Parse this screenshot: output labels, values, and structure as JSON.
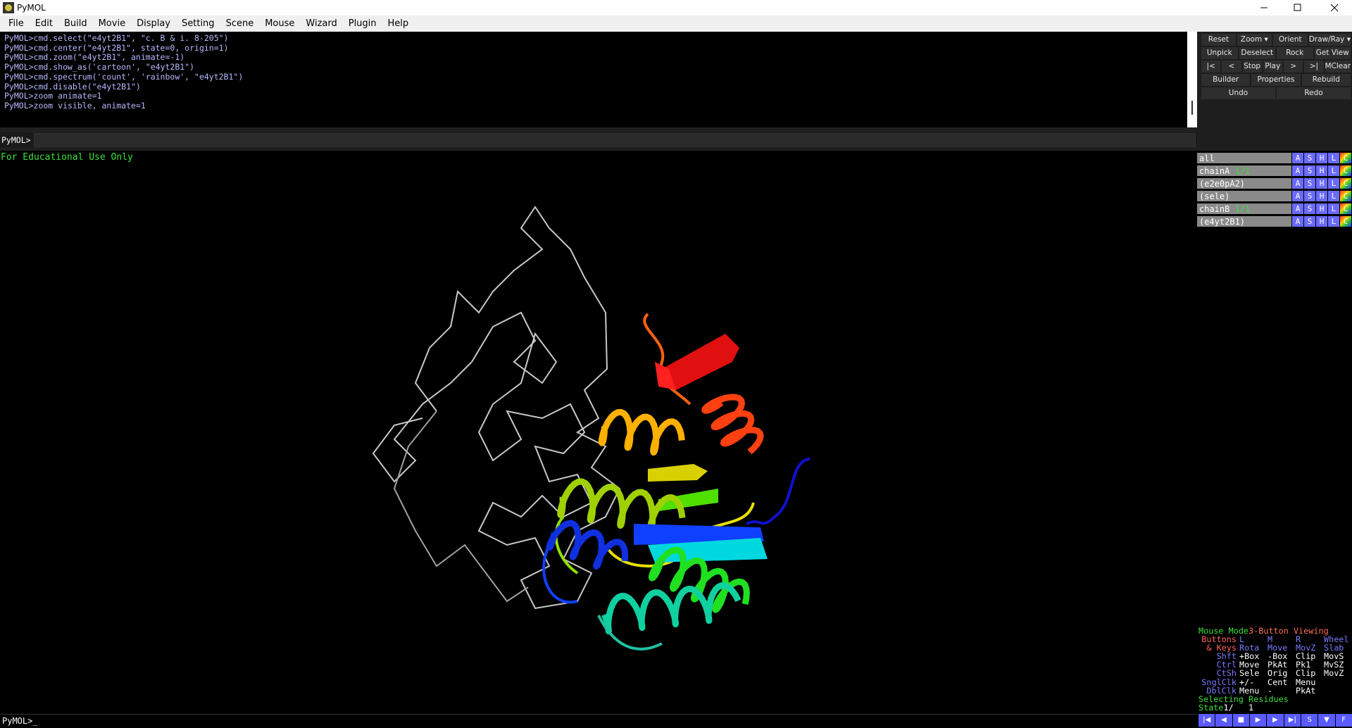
{
  "window": {
    "title": "PyMOL"
  },
  "menu": [
    "File",
    "Edit",
    "Build",
    "Movie",
    "Display",
    "Setting",
    "Scene",
    "Mouse",
    "Wizard",
    "Plugin",
    "Help"
  ],
  "log": [
    "PyMOL>cmd.select(\"e4yt2B1\", \"c. B & i. 8-205\")",
    "PyMOL>cmd.center(\"e4yt2B1\", state=0, origin=1)",
    "PyMOL>cmd.zoom(\"e4yt2B1\", animate=-1)",
    "PyMOL>cmd.show_as('cartoon', \"e4yt2B1\")",
    "PyMOL>cmd.spectrum('count', 'rainbow', \"e4yt2B1\")",
    "PyMOL>cmd.disable(\"e4yt2B1\")",
    "PyMOL>zoom animate=1",
    "PyMOL>zoom visible, animate=1"
  ],
  "command": {
    "prompt": "PyMOL>"
  },
  "viewer": {
    "notice": "For Educational Use Only"
  },
  "bottom_prompt": "PyMOL>_",
  "buttons": [
    [
      "Reset",
      "Zoom ▾",
      "Orient",
      "Draw/Ray ▾"
    ],
    [
      "Unpick",
      "Deselect",
      "Rock",
      "Get View"
    ],
    [
      "|<",
      "<",
      "Stop",
      "Play",
      ">",
      ">|",
      "MClear"
    ],
    [
      "Builder",
      "Properties",
      "Rebuild"
    ],
    [
      "Undo",
      "Redo"
    ]
  ],
  "objects": [
    {
      "name": "all"
    },
    {
      "name": "chainA",
      "state": "1/1"
    },
    {
      "name": "(e2e0pA2)"
    },
    {
      "name": "(sele)"
    },
    {
      "name": "chainB",
      "state": "1/1"
    },
    {
      "name": "(e4yt2B1)"
    }
  ],
  "object_controls": [
    "A",
    "S",
    "H",
    "L",
    "C"
  ],
  "mouse_panel": {
    "title": "Mouse Mode",
    "mode": "3-Button Viewing",
    "header": [
      "Buttons",
      "L",
      "M",
      "R",
      "Wheel"
    ],
    "rows": [
      [
        "& Keys",
        "Rota",
        "Move",
        "MovZ",
        "Slab"
      ],
      [
        "Shft",
        "+Box",
        "-Box",
        "Clip",
        "MovS"
      ],
      [
        "Ctrl",
        "Move",
        "PkAt",
        "Pk1",
        "MvSZ"
      ],
      [
        "CtSh",
        "Sele",
        "Orig",
        "Clip",
        "MovZ"
      ],
      [
        "SnglClk",
        "+/-",
        "Cent",
        "Menu"
      ],
      [
        "DblClk",
        "Menu",
        "-",
        "PkAt"
      ]
    ],
    "selecting": "Selecting Residues",
    "state_label": "State",
    "state_value": "1/   1"
  },
  "movie_controls": [
    "|◀",
    "◀",
    "■",
    "▶",
    "▶",
    "▶|",
    "S",
    "▼",
    "F"
  ]
}
